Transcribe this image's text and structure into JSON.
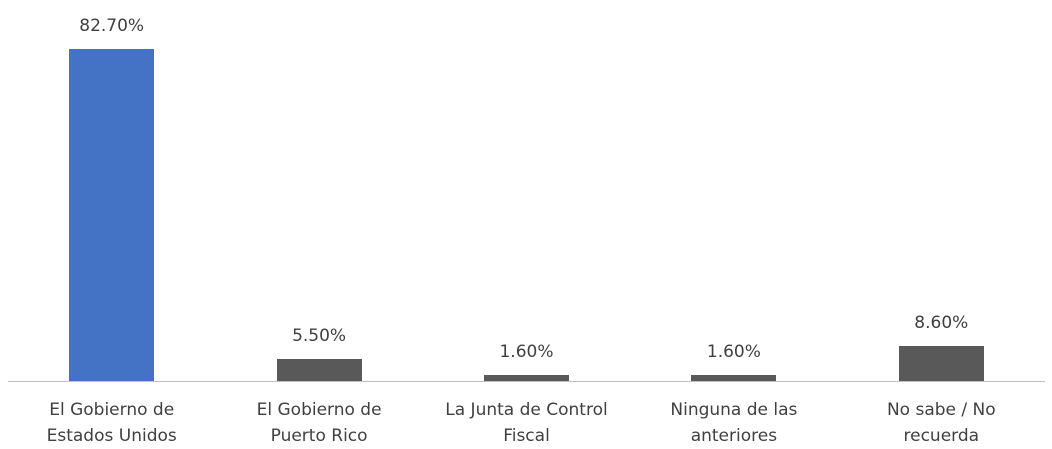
{
  "chart_data": {
    "type": "bar",
    "categories": [
      "El Gobierno de\nEstados Unidos",
      "El Gobierno de\nPuerto Rico",
      "La Junta de Control\nFiscal",
      "Ninguna de las\nanteriores",
      "No sabe / No\nrecuerda"
    ],
    "values": [
      82.7,
      5.5,
      1.6,
      1.6,
      8.6
    ],
    "value_labels": [
      "82.70%",
      "5.50%",
      "1.60%",
      "1.60%",
      "8.60%"
    ],
    "colors": [
      "#4472c4",
      "#595959",
      "#595959",
      "#595959",
      "#595959"
    ]
  }
}
